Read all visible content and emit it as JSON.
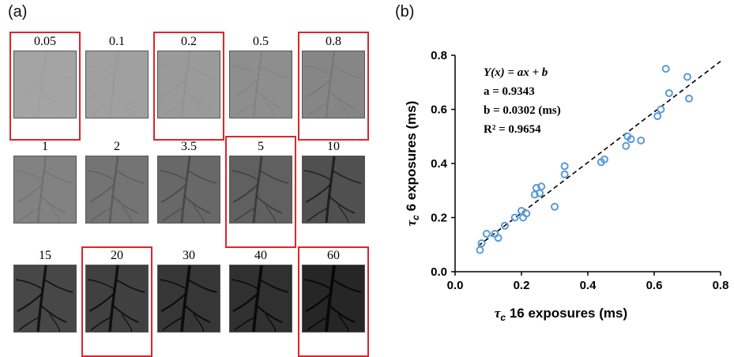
{
  "panel_a": {
    "letter": "(a)",
    "tiles": [
      {
        "label": "0.05",
        "level": 0.05,
        "highlighted": true
      },
      {
        "label": "0.1",
        "level": 0.1,
        "highlighted": false
      },
      {
        "label": "0.2",
        "level": 0.2,
        "highlighted": true
      },
      {
        "label": "0.5",
        "level": 0.5,
        "highlighted": false
      },
      {
        "label": "0.8",
        "level": 0.8,
        "highlighted": true
      },
      {
        "label": "1",
        "level": 1,
        "highlighted": false
      },
      {
        "label": "2",
        "level": 2,
        "highlighted": false
      },
      {
        "label": "3.5",
        "level": 3.5,
        "highlighted": false
      },
      {
        "label": "5",
        "level": 5,
        "highlighted": true
      },
      {
        "label": "10",
        "level": 10,
        "highlighted": false
      },
      {
        "label": "15",
        "level": 15,
        "highlighted": false
      },
      {
        "label": "20",
        "level": 20,
        "highlighted": true
      },
      {
        "label": "30",
        "level": 30,
        "highlighted": false
      },
      {
        "label": "40",
        "level": 40,
        "highlighted": false
      },
      {
        "label": "60",
        "level": 60,
        "highlighted": true
      }
    ],
    "highlight_color": "#e0242b"
  },
  "panel_b": {
    "letter": "(b)",
    "equation_lines": [
      "Y(x) = ax + b",
      "a = 0.9343",
      "b = 0.0302 (ms)",
      "R² = 0.9654"
    ],
    "x_title_symbol": "τ",
    "x_title_sub": "c",
    "x_title_text": " 16 exposures (ms)",
    "y_title_symbol": "τ",
    "y_title_sub": "c",
    "y_title_text": " 6 exposures (ms)"
  },
  "chart_data": {
    "type": "scatter",
    "xlim": [
      0.0,
      0.8
    ],
    "ylim": [
      0.0,
      0.8
    ],
    "x_ticks": [
      "0.0",
      "0.2",
      "0.4",
      "0.6",
      "0.8"
    ],
    "y_ticks": [
      "0.0",
      "0.2",
      "0.4",
      "0.6",
      "0.8"
    ],
    "grid": false,
    "marker_color": "#5b9bd5",
    "fit_line": {
      "slope": 0.9343,
      "intercept": 0.0302,
      "style": "dashed",
      "color": "#000000"
    },
    "points": [
      {
        "x": 0.075,
        "y": 0.08
      },
      {
        "x": 0.08,
        "y": 0.105
      },
      {
        "x": 0.095,
        "y": 0.14
      },
      {
        "x": 0.12,
        "y": 0.14
      },
      {
        "x": 0.13,
        "y": 0.125
      },
      {
        "x": 0.15,
        "y": 0.17
      },
      {
        "x": 0.18,
        "y": 0.2
      },
      {
        "x": 0.2,
        "y": 0.225
      },
      {
        "x": 0.205,
        "y": 0.2
      },
      {
        "x": 0.215,
        "y": 0.215
      },
      {
        "x": 0.24,
        "y": 0.285
      },
      {
        "x": 0.245,
        "y": 0.31
      },
      {
        "x": 0.255,
        "y": 0.29
      },
      {
        "x": 0.26,
        "y": 0.315
      },
      {
        "x": 0.3,
        "y": 0.24
      },
      {
        "x": 0.33,
        "y": 0.39
      },
      {
        "x": 0.33,
        "y": 0.36
      },
      {
        "x": 0.44,
        "y": 0.405
      },
      {
        "x": 0.45,
        "y": 0.415
      },
      {
        "x": 0.515,
        "y": 0.465
      },
      {
        "x": 0.52,
        "y": 0.5
      },
      {
        "x": 0.53,
        "y": 0.49
      },
      {
        "x": 0.56,
        "y": 0.485
      },
      {
        "x": 0.61,
        "y": 0.575
      },
      {
        "x": 0.62,
        "y": 0.6
      },
      {
        "x": 0.635,
        "y": 0.75
      },
      {
        "x": 0.645,
        "y": 0.66
      },
      {
        "x": 0.7,
        "y": 0.72
      },
      {
        "x": 0.705,
        "y": 0.64
      }
    ]
  }
}
